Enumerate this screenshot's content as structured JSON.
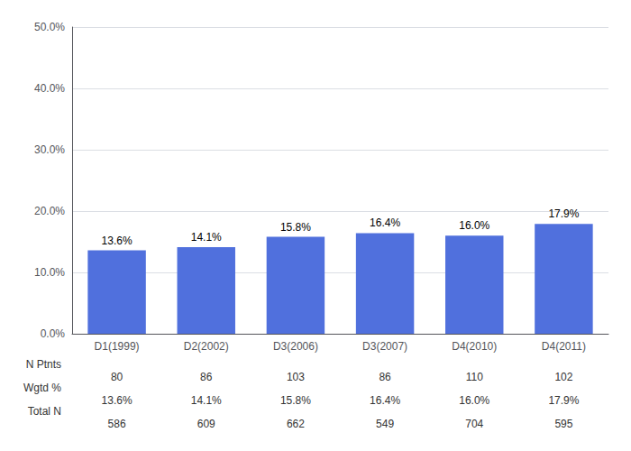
{
  "chart_data": {
    "type": "bar",
    "categories": [
      "D1(1999)",
      "D2(2002)",
      "D3(2006)",
      "D3(2007)",
      "D4(2010)",
      "D4(2011)"
    ],
    "values": [
      13.6,
      14.1,
      15.8,
      16.4,
      16.0,
      17.9
    ],
    "value_labels": [
      "13.6%",
      "14.1%",
      "15.8%",
      "16.4%",
      "16.0%",
      "17.9%"
    ],
    "data_labels": true,
    "ylim": [
      0,
      50
    ],
    "yticks": [
      {
        "value": 0,
        "label": "0.0%"
      },
      {
        "value": 10,
        "label": "10.0%"
      },
      {
        "value": 20,
        "label": "20.0%"
      },
      {
        "value": 30,
        "label": "30.0%"
      },
      {
        "value": 40,
        "label": "40.0%"
      },
      {
        "value": 50,
        "label": "50.0%"
      }
    ],
    "grid": true,
    "table": [
      {
        "label": "N Ptnts",
        "values": [
          "80",
          "86",
          "103",
          "86",
          "110",
          "102"
        ]
      },
      {
        "label": "Wgtd %",
        "values": [
          "13.6%",
          "14.1%",
          "15.8%",
          "16.4%",
          "16.0%",
          "17.9%"
        ]
      },
      {
        "label": "Total N",
        "values": [
          "586",
          "609",
          "662",
          "549",
          "704",
          "595"
        ]
      }
    ]
  }
}
